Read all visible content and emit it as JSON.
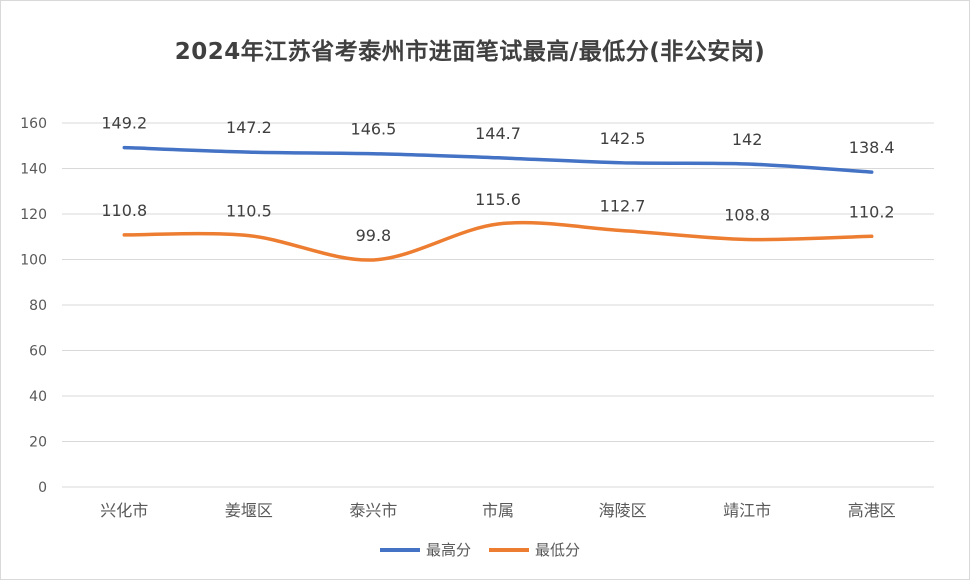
{
  "colors": {
    "series_high": "#4472C4",
    "series_low": "#ED7D31",
    "grid": "#d9d9d9"
  },
  "chart_data": {
    "type": "line",
    "title": "2024年江苏省考泰州市进面笔试最高/最低分(非公安岗)",
    "categories": [
      "兴化市",
      "姜堰区",
      "泰兴市",
      "市属",
      "海陵区",
      "靖江市",
      "高港区"
    ],
    "series": [
      {
        "name": "最高分",
        "values": [
          149.2,
          147.2,
          146.5,
          144.7,
          142.5,
          142,
          138.4
        ]
      },
      {
        "name": "最低分",
        "values": [
          110.8,
          110.5,
          99.8,
          115.6,
          112.7,
          108.8,
          110.2
        ]
      }
    ],
    "yticks": [
      0,
      20,
      40,
      60,
      80,
      100,
      120,
      140,
      160
    ],
    "ylim": [
      0,
      160
    ],
    "grid": true,
    "data_labels": true,
    "legend_position": "bottom"
  }
}
